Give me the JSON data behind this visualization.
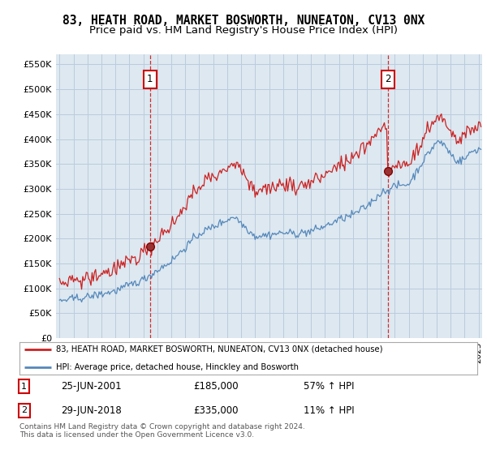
{
  "title": "83, HEATH ROAD, MARKET BOSWORTH, NUNEATON, CV13 0NX",
  "subtitle": "Price paid vs. HM Land Registry's House Price Index (HPI)",
  "ylabel_ticks": [
    "£0",
    "£50K",
    "£100K",
    "£150K",
    "£200K",
    "£250K",
    "£300K",
    "£350K",
    "£400K",
    "£450K",
    "£500K",
    "£550K"
  ],
  "ytick_values": [
    0,
    50000,
    100000,
    150000,
    200000,
    250000,
    300000,
    350000,
    400000,
    450000,
    500000,
    550000
  ],
  "ylim": [
    0,
    570000
  ],
  "sale1_x": 2001.48,
  "sale1_price": 185000,
  "sale2_x": 2018.49,
  "sale2_price": 335000,
  "sale_color": "#cc0000",
  "hpi_line_color": "#5588bb",
  "property_line_color": "#cc2222",
  "plot_bg_color": "#dde8f0",
  "legend_property": "83, HEATH ROAD, MARKET BOSWORTH, NUNEATON, CV13 0NX (detached house)",
  "legend_hpi": "HPI: Average price, detached house, Hinckley and Bosworth",
  "footer": "Contains HM Land Registry data © Crown copyright and database right 2024.\nThis data is licensed under the Open Government Licence v3.0.",
  "background_color": "#ffffff",
  "grid_color": "#bbccdd",
  "title_fontsize": 10.5,
  "subtitle_fontsize": 9.5
}
